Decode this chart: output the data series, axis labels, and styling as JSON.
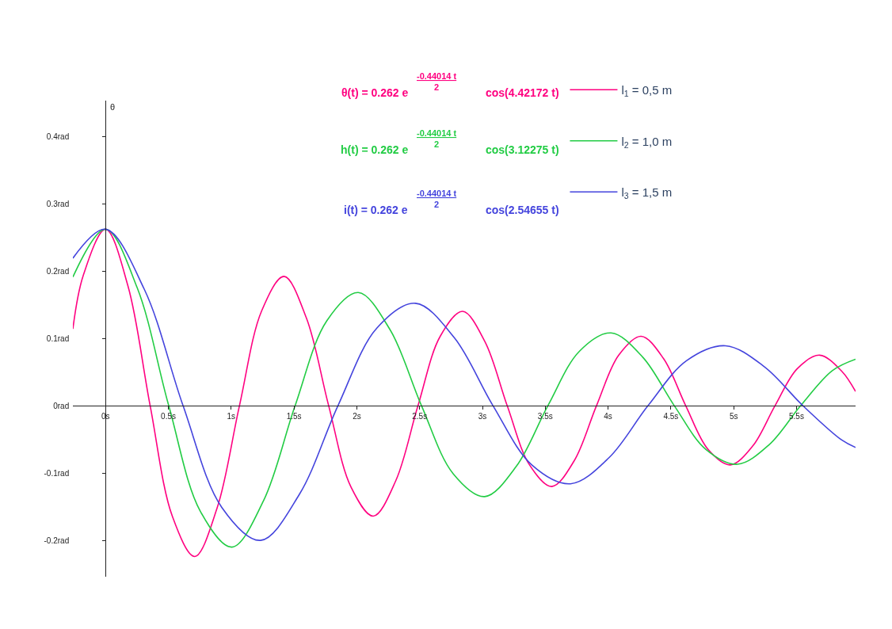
{
  "chart_data": {
    "type": "line",
    "ylabel": "θ",
    "xlim": [
      -0.26,
      5.97
    ],
    "ylim": [
      -0.254,
      0.453
    ],
    "xticks": [
      {
        "value": 0,
        "label": "0s"
      },
      {
        "value": 0.5,
        "label": "0.5s"
      },
      {
        "value": 1,
        "label": "1s"
      },
      {
        "value": 1.5,
        "label": "1.5s"
      },
      {
        "value": 2,
        "label": "2s"
      },
      {
        "value": 2.5,
        "label": "2.5s"
      },
      {
        "value": 3,
        "label": "3s"
      },
      {
        "value": 3.5,
        "label": "3.5s"
      },
      {
        "value": 4,
        "label": "4s"
      },
      {
        "value": 4.5,
        "label": "4.5s"
      },
      {
        "value": 5,
        "label": "5s"
      },
      {
        "value": 5.5,
        "label": "5.5s"
      }
    ],
    "yticks": [
      {
        "value": -0.2,
        "label": "-0.2rad"
      },
      {
        "value": -0.1,
        "label": "-0.1rad"
      },
      {
        "value": 0,
        "label": "0rad"
      },
      {
        "value": 0.1,
        "label": "0.1rad"
      },
      {
        "value": 0.2,
        "label": "0.2rad"
      },
      {
        "value": 0.3,
        "label": "0.3rad"
      },
      {
        "value": 0.4,
        "label": "0.4rad"
      }
    ],
    "legend": "top right",
    "marker": "none",
    "line_style": "solid",
    "annotations": [
      "θ(t) = 0.262 e",
      "-0.44014 t",
      "2",
      "cos(4.42172 t)",
      "h(t) = 0.262 e",
      "-0.44014 t",
      "2",
      "cos(3.12275 t)",
      "i(t) = 0.262 e",
      "-0.44014 t",
      "2",
      "cos(2.54655 t)"
    ],
    "series": [
      {
        "name": "l$_{1}$ = 0,5 m",
        "color": "#ff0080",
        "x": [
          -0.26,
          -0.178,
          0,
          0.178,
          0.355,
          0.533,
          0.71,
          0.888,
          1.066,
          1.243,
          1.421,
          1.599,
          1.776,
          1.954,
          2.131,
          2.309,
          2.487,
          2.664,
          2.842,
          3.02,
          3.197,
          3.375,
          3.552,
          3.73,
          3.908,
          4.085,
          4.263,
          4.441,
          4.618,
          4.796,
          4.973,
          5.151,
          5.329,
          5.506,
          5.684,
          5.861,
          5.97
        ],
        "values": [
          0.114,
          0.193,
          0.262,
          0.178,
          0,
          -0.165,
          -0.224,
          -0.152,
          0,
          0.141,
          0.192,
          0.13,
          0,
          -0.121,
          -0.164,
          -0.112,
          0,
          0.103,
          0.14,
          0.095,
          0,
          -0.088,
          -0.12,
          -0.082,
          0,
          0.075,
          0.103,
          0.07,
          0,
          -0.065,
          -0.088,
          -0.06,
          0,
          0.055,
          0.075,
          0.051,
          0.021
        ]
      },
      {
        "name": "l$_{2}$ = 1,0 m",
        "color": "#22cc44",
        "x": [
          -0.26,
          0,
          0.252,
          0.503,
          0.755,
          1.006,
          1.258,
          1.509,
          1.761,
          2.012,
          2.264,
          2.515,
          2.767,
          3.018,
          3.27,
          3.521,
          3.773,
          4.024,
          4.276,
          4.527,
          4.779,
          5.03,
          5.282,
          5.533,
          5.785,
          5.97
        ],
        "values": [
          0.191,
          0.262,
          0.175,
          0,
          -0.157,
          -0.21,
          -0.141,
          0,
          0.126,
          0.168,
          0.113,
          0,
          -0.101,
          -0.135,
          -0.09,
          0,
          0.081,
          0.108,
          0.072,
          0,
          -0.065,
          -0.087,
          -0.058,
          0,
          0.052,
          0.069
        ]
      },
      {
        "name": "l$_{3}$ = 1,5 m",
        "color": "#4444dd",
        "x": [
          -0.26,
          0,
          0.308,
          0.617,
          0.925,
          1.234,
          1.542,
          1.85,
          2.159,
          2.467,
          2.776,
          3.084,
          3.393,
          3.701,
          4.009,
          4.318,
          4.626,
          4.935,
          5.243,
          5.551,
          5.86,
          5.97
        ],
        "values": [
          0.219,
          0.262,
          0.173,
          0,
          -0.151,
          -0.2,
          -0.132,
          0,
          0.115,
          0.152,
          0.101,
          0,
          -0.088,
          -0.116,
          -0.077,
          0,
          0.067,
          0.089,
          0.058,
          0,
          -0.051,
          -0.062
        ]
      }
    ]
  }
}
